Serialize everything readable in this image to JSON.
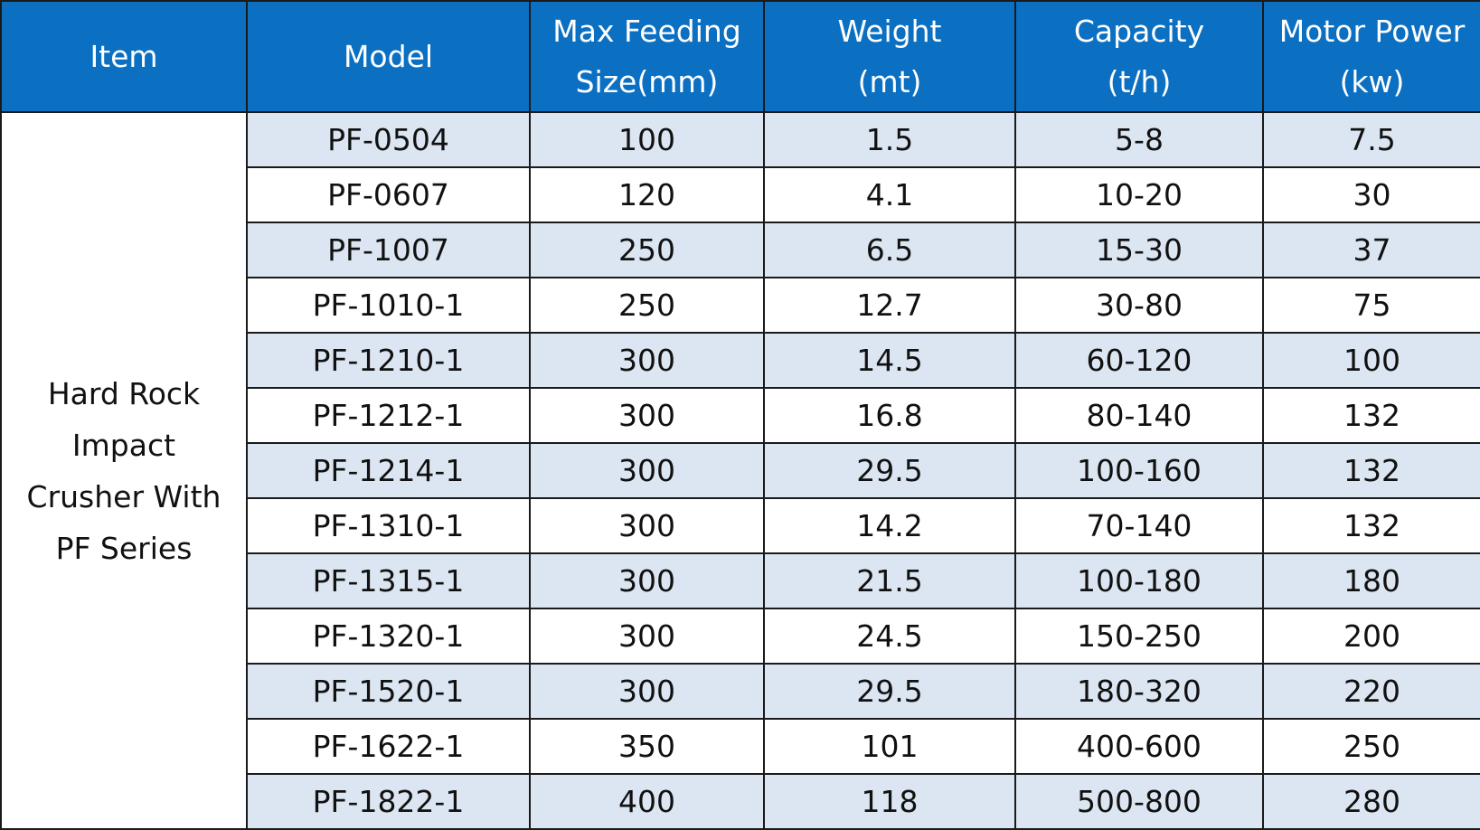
{
  "header": {
    "item": "Item",
    "model": "Model",
    "feed_line1": "Max Feeding",
    "feed_line2": "Size(mm)",
    "weight_line1": "Weight",
    "weight_line2": "(mt)",
    "capacity_line1": "Capacity",
    "capacity_line2": "(t/h)",
    "motor_line1": "Motor Power",
    "motor_line2": "(kw)"
  },
  "item_label": "Hard Rock Impact Crusher With PF Series",
  "rows": [
    {
      "model": "PF-0504",
      "feed": "100",
      "weight": "1.5",
      "capacity": "5-8",
      "motor": "7.5"
    },
    {
      "model": "PF-0607",
      "feed": "120",
      "weight": "4.1",
      "capacity": "10-20",
      "motor": "30"
    },
    {
      "model": "PF-1007",
      "feed": "250",
      "weight": "6.5",
      "capacity": "15-30",
      "motor": "37"
    },
    {
      "model": "PF-1010-1",
      "feed": "250",
      "weight": "12.7",
      "capacity": "30-80",
      "motor": "75"
    },
    {
      "model": "PF-1210-1",
      "feed": "300",
      "weight": "14.5",
      "capacity": "60-120",
      "motor": "100"
    },
    {
      "model": "PF-1212-1",
      "feed": "300",
      "weight": "16.8",
      "capacity": "80-140",
      "motor": "132"
    },
    {
      "model": "PF-1214-1",
      "feed": "300",
      "weight": "29.5",
      "capacity": "100-160",
      "motor": "132"
    },
    {
      "model": "PF-1310-1",
      "feed": "300",
      "weight": "14.2",
      "capacity": "70-140",
      "motor": "132"
    },
    {
      "model": "PF-1315-1",
      "feed": "300",
      "weight": "21.5",
      "capacity": "100-180",
      "motor": "180"
    },
    {
      "model": "PF-1320-1",
      "feed": "300",
      "weight": "24.5",
      "capacity": "150-250",
      "motor": "200"
    },
    {
      "model": "PF-1520-1",
      "feed": "300",
      "weight": "29.5",
      "capacity": "180-320",
      "motor": "220"
    },
    {
      "model": "PF-1622-1",
      "feed": "350",
      "weight": "101",
      "capacity": "400-600",
      "motor": "250"
    },
    {
      "model": "PF-1822-1",
      "feed": "400",
      "weight": "118",
      "capacity": "500-800",
      "motor": "280"
    }
  ],
  "colors": {
    "header_bg": "#0b6fc2",
    "header_text": "#ffffff",
    "shaded_row": "#dce6f2",
    "plain_row": "#ffffff",
    "border": "#1a1a1a"
  }
}
